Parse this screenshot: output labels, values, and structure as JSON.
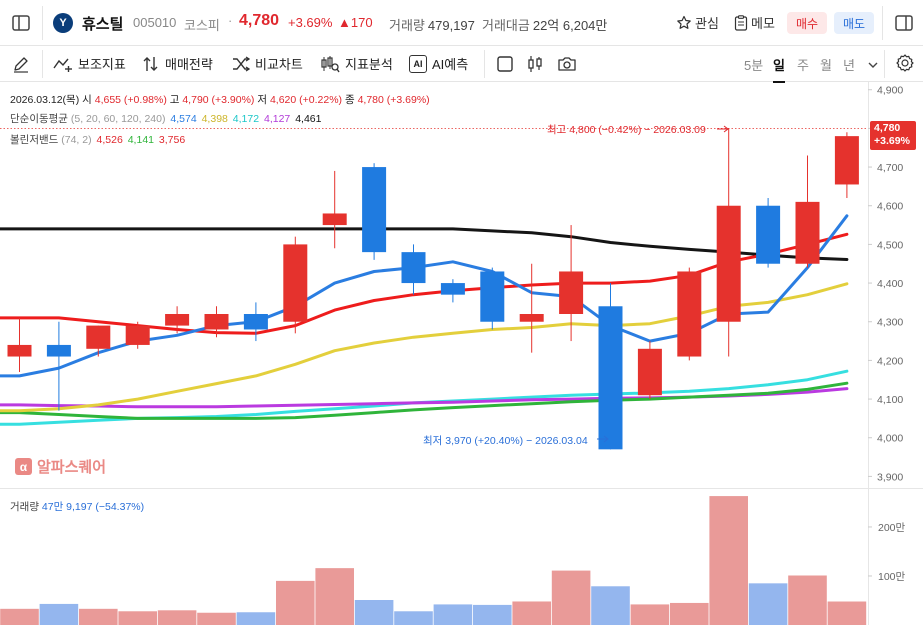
{
  "header": {
    "logo_text": "Y",
    "name": "휴스틸",
    "code": "005010",
    "market": "코스피",
    "separator": "·",
    "price": "4,780",
    "change_pct": "+3.69%",
    "change_abs": "▲170",
    "volume_label": "거래량",
    "volume_value": "479,197",
    "amount_label": "거래대금",
    "amount_value": "22억 6,204만",
    "favorite_label": "관심",
    "memo_label": "메모",
    "buy_label": "매수",
    "sell_label": "매도"
  },
  "toolbar": {
    "indicators": "보조지표",
    "strategy": "매매전략",
    "compare": "비교차트",
    "analysis": "지표분석",
    "ai_badge": "AI",
    "ai_predict": "AI예측",
    "timeframes": [
      "5분",
      "일",
      "주",
      "월",
      "년"
    ],
    "active_timeframe": "일"
  },
  "legend": {
    "ohlc": {
      "date": "2026.03.12(목)",
      "open_label": "시",
      "open_value": "4,655 (+0.98%)",
      "high_label": "고",
      "high_value": "4,790 (+3.90%)",
      "low_label": "저",
      "low_value": "4,620 (+0.22%)",
      "close_label": "종",
      "close_value": "4,780 (+3.69%)"
    },
    "ma": {
      "label": "단순이동평균",
      "params": "(5, 20, 60, 120, 240)",
      "values": [
        "4,574",
        "4,398",
        "4,172",
        "4,127",
        "4,461"
      ]
    },
    "bollinger": {
      "label": "볼린저밴드",
      "params": "(74, 2)",
      "values": [
        "4,526",
        "4,141",
        "3,756"
      ]
    }
  },
  "annotations": {
    "high": "최고 4,800 (−0.42%) − 2026.03.09",
    "low": "최저 3,970 (+20.40%) − 2026.03.04"
  },
  "watermark": "알파스퀘어",
  "watermark_icon": "α",
  "price_tag": {
    "price": "4,780",
    "pct": "+3.69%"
  },
  "volume_legend": {
    "label": "거래량",
    "value": "47만 9,197",
    "pct": "(−54.37%)"
  },
  "colors": {
    "up": "#e5322d",
    "down": "#1f7be0",
    "ma5": "#2a7de1",
    "ma20": "#ee1c1c",
    "ma60": "#e3cf3c",
    "ma120": "#36dfe0",
    "ma240": "#151515",
    "bb_upper": "#ba3ae0",
    "bb_lower": "#2fb43a",
    "vol_up": "#e99a98",
    "vol_down": "#94b6ee"
  },
  "chart_data": {
    "type": "candlestick",
    "y_ticks": [
      "4,900",
      "4,800",
      "4,700",
      "4,600",
      "4,500",
      "4,400",
      "4,300",
      "4,200",
      "4,100",
      "4,000",
      "3,900"
    ],
    "ylim": [
      3870,
      4920
    ],
    "candles": [
      {
        "o": 4210,
        "h": 4310,
        "l": 4170,
        "c": 4240
      },
      {
        "o": 4240,
        "h": 4300,
        "l": 4070,
        "c": 4210
      },
      {
        "o": 4230,
        "h": 4290,
        "l": 4210,
        "c": 4290
      },
      {
        "o": 4240,
        "h": 4300,
        "l": 4230,
        "c": 4290
      },
      {
        "o": 4290,
        "h": 4340,
        "l": 4270,
        "c": 4320
      },
      {
        "o": 4280,
        "h": 4340,
        "l": 4260,
        "c": 4320
      },
      {
        "o": 4320,
        "h": 4350,
        "l": 4250,
        "c": 4280
      },
      {
        "o": 4300,
        "h": 4520,
        "l": 4270,
        "c": 4500
      },
      {
        "o": 4550,
        "h": 4690,
        "l": 4490,
        "c": 4580
      },
      {
        "o": 4700,
        "h": 4710,
        "l": 4460,
        "c": 4480
      },
      {
        "o": 4480,
        "h": 4500,
        "l": 4370,
        "c": 4400
      },
      {
        "o": 4400,
        "h": 4410,
        "l": 4350,
        "c": 4370
      },
      {
        "o": 4430,
        "h": 4440,
        "l": 4280,
        "c": 4300
      },
      {
        "o": 4300,
        "h": 4450,
        "l": 4220,
        "c": 4320
      },
      {
        "o": 4320,
        "h": 4550,
        "l": 4250,
        "c": 4430
      },
      {
        "o": 4340,
        "h": 4400,
        "l": 3970,
        "c": 3970
      },
      {
        "o": 4110,
        "h": 4250,
        "l": 4100,
        "c": 4230
      },
      {
        "o": 4210,
        "h": 4440,
        "l": 4200,
        "c": 4430
      },
      {
        "o": 4300,
        "h": 4800,
        "l": 4210,
        "c": 4600
      },
      {
        "o": 4600,
        "h": 4620,
        "l": 4440,
        "c": 4450
      },
      {
        "o": 4450,
        "h": 4730,
        "l": 4440,
        "c": 4610
      },
      {
        "o": 4655,
        "h": 4790,
        "l": 4620,
        "c": 4780
      }
    ],
    "volume_ticks": [
      "200만",
      "100만"
    ],
    "volume_max": 2550000,
    "volumes": [
      330000,
      430000,
      330000,
      280000,
      300000,
      250000,
      260000,
      900000,
      1160000,
      510000,
      280000,
      420000,
      410000,
      480000,
      1110000,
      790000,
      420000,
      450000,
      2630000,
      850000,
      1010000,
      479197
    ],
    "ma_series": {
      "ma240": [
        4540,
        4540,
        4540,
        4540,
        4540,
        4540,
        4540,
        4540,
        4540,
        4540,
        4540,
        4540,
        4535,
        4530,
        4520,
        4505,
        4495,
        4487,
        4480,
        4472,
        4465,
        4461
      ],
      "ma20": [
        4310,
        4310,
        4300,
        4290,
        4280,
        4272,
        4270,
        4290,
        4330,
        4355,
        4370,
        4380,
        4388,
        4395,
        4400,
        4400,
        4405,
        4420,
        4455,
        4475,
        4500,
        4526
      ],
      "ma5": [
        4160,
        4180,
        4220,
        4250,
        4265,
        4290,
        4300,
        4340,
        4400,
        4430,
        4440,
        4455,
        4430,
        4375,
        4365,
        4290,
        4250,
        4270,
        4320,
        4325,
        4440,
        4574
      ],
      "ma60": [
        4070,
        4075,
        4085,
        4100,
        4120,
        4140,
        4160,
        4190,
        4225,
        4245,
        4260,
        4270,
        4280,
        4285,
        4295,
        4290,
        4295,
        4315,
        4340,
        4350,
        4370,
        4398
      ],
      "bb_upper": [
        4085,
        4083,
        4082,
        4080,
        4080,
        4080,
        4082,
        4084,
        4086,
        4088,
        4090,
        4092,
        4095,
        4098,
        4100,
        4102,
        4103,
        4105,
        4108,
        4112,
        4118,
        4127
      ],
      "ma120": [
        4035,
        4040,
        4045,
        4050,
        4052,
        4055,
        4060,
        4068,
        4075,
        4082,
        4090,
        4095,
        4100,
        4105,
        4110,
        4113,
        4116,
        4120,
        4127,
        4137,
        4150,
        4172
      ],
      "bb_lower": [
        4065,
        4060,
        4055,
        4050,
        4050,
        4050,
        4050,
        4052,
        4058,
        4065,
        4072,
        4078,
        4083,
        4088,
        4093,
        4097,
        4100,
        4105,
        4110,
        4115,
        4125,
        4141
      ]
    }
  }
}
